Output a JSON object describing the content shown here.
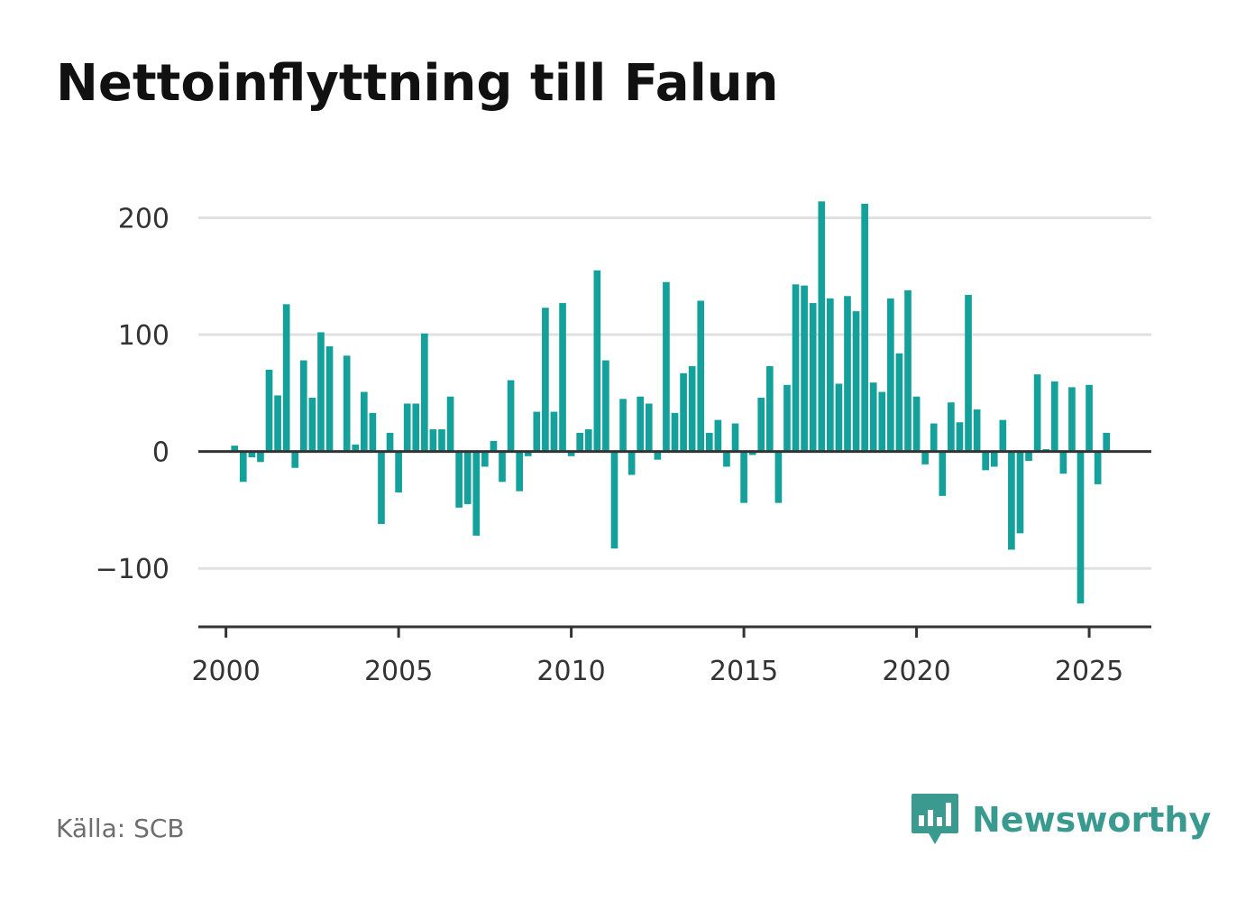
{
  "title": "Nettoinflyttning till Falun",
  "source": "Källa: SCB",
  "brand": "Newsworthy",
  "colors": {
    "bar": "#14a19b",
    "grid": "#e0e0e0",
    "axis": "#333333",
    "brand": "#3b9a8f"
  },
  "icons": {
    "brand_logo": "bar-chart-speech-bubble-icon"
  },
  "chart_data": {
    "type": "bar",
    "title": "Nettoinflyttning till Falun",
    "xlabel": "",
    "ylabel": "",
    "x_ticks": [
      "2000",
      "2005",
      "2010",
      "2015",
      "2020",
      "2025"
    ],
    "y_ticks": [
      200,
      100,
      0,
      -100
    ],
    "y_tick_labels": [
      "200",
      "100",
      "0",
      "−100"
    ],
    "xlim": [
      1999.2,
      2026.8
    ],
    "ylim": [
      -150,
      215
    ],
    "grid": true,
    "legend": "none",
    "x": [
      2000.25,
      2000.5,
      2000.75,
      2001.0,
      2001.25,
      2001.5,
      2001.75,
      2002.0,
      2002.25,
      2002.5,
      2002.75,
      2003.0,
      2003.25,
      2003.5,
      2003.75,
      2004.0,
      2004.25,
      2004.5,
      2004.75,
      2005.0,
      2005.25,
      2005.5,
      2005.75,
      2006.0,
      2006.25,
      2006.5,
      2006.75,
      2007.0,
      2007.25,
      2007.5,
      2007.75,
      2008.0,
      2008.25,
      2008.5,
      2008.75,
      2009.0,
      2009.25,
      2009.5,
      2009.75,
      2010.0,
      2010.25,
      2010.5,
      2010.75,
      2011.0,
      2011.25,
      2011.5,
      2011.75,
      2012.0,
      2012.25,
      2012.5,
      2012.75,
      2013.0,
      2013.25,
      2013.5,
      2013.75,
      2014.0,
      2014.25,
      2014.5,
      2014.75,
      2015.0,
      2015.25,
      2015.5,
      2015.75,
      2016.0,
      2016.25,
      2016.5,
      2016.75,
      2017.0,
      2017.25,
      2017.5,
      2017.75,
      2018.0,
      2018.25,
      2018.5,
      2018.75,
      2019.0,
      2019.25,
      2019.5,
      2019.75,
      2020.0,
      2020.25,
      2020.5,
      2020.75,
      2021.0,
      2021.25,
      2021.5,
      2021.75,
      2022.0,
      2022.25,
      2022.5,
      2022.75,
      2023.0,
      2023.25,
      2023.5,
      2023.75,
      2024.0,
      2024.25,
      2024.5,
      2024.75,
      2025.0,
      2025.25,
      2025.5
    ],
    "values": [
      5,
      -26,
      -5,
      -9,
      70,
      48,
      126,
      -14,
      78,
      46,
      102,
      90,
      -1,
      82,
      6,
      51,
      33,
      -62,
      16,
      -35,
      41,
      41,
      101,
      19,
      19,
      47,
      -48,
      -45,
      -72,
      -13,
      9,
      -26,
      61,
      -34,
      -4,
      34,
      123,
      34,
      127,
      -4,
      16,
      19,
      155,
      78,
      -83,
      45,
      -20,
      47,
      41,
      -7,
      145,
      33,
      67,
      73,
      129,
      16,
      27,
      -13,
      24,
      -44,
      -3,
      46,
      73,
      -44,
      57,
      143,
      142,
      127,
      214,
      131,
      58,
      133,
      120,
      212,
      59,
      51,
      131,
      84,
      138,
      47,
      -11,
      24,
      -38,
      42,
      25,
      134,
      36,
      -16,
      -13,
      27,
      -84,
      -70,
      -8,
      66,
      2,
      60,
      -19,
      55,
      -130,
      57,
      -28,
      16
    ]
  }
}
